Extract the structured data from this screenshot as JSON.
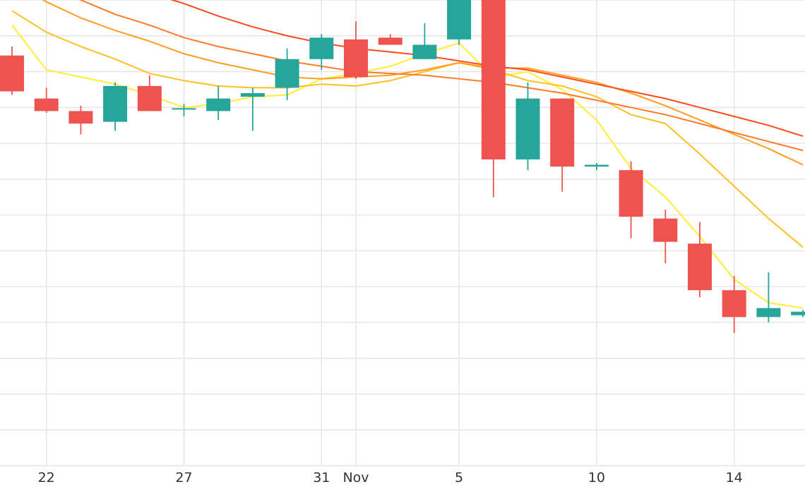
{
  "chart_data": {
    "type": "candlestick",
    "title": "",
    "xlabel": "",
    "ylabel": "",
    "grid": true,
    "legend": "none",
    "colors": {
      "up": "#26A69A",
      "down": "#EF5350",
      "grid": "#E6E6E6"
    },
    "x_ticks": [
      {
        "label": "22",
        "index": 1
      },
      {
        "label": "27",
        "index": 5
      },
      {
        "label": "31",
        "index": 9
      },
      {
        "label": "Nov",
        "index": 10
      },
      {
        "label": "5",
        "index": 13
      },
      {
        "label": "10",
        "index": 17
      },
      {
        "label": "14",
        "index": 21
      }
    ],
    "ylim": [
      100,
      230
    ],
    "candles": [
      {
        "open": 214.5,
        "close": 204.5,
        "high": 217,
        "low": 203.5
      },
      {
        "open": 202.5,
        "close": 199.0,
        "high": 205.5,
        "low": 198.5
      },
      {
        "open": 199.0,
        "close": 195.5,
        "high": 200.5,
        "low": 192.5
      },
      {
        "open": 196.0,
        "close": 206.0,
        "high": 207,
        "low": 193.5
      },
      {
        "open": 206.0,
        "close": 199.0,
        "high": 209,
        "low": 199
      },
      {
        "open": 199.5,
        "close": 199.8,
        "high": 201,
        "low": 197.5
      },
      {
        "open": 199.0,
        "close": 202.5,
        "high": 206,
        "low": 196.5
      },
      {
        "open": 203.0,
        "close": 204.0,
        "high": 205.5,
        "low": 193.5
      },
      {
        "open": 205.5,
        "close": 213.5,
        "high": 216.5,
        "low": 202
      },
      {
        "open": 213.5,
        "close": 219.5,
        "high": 220.5,
        "low": 210.5
      },
      {
        "open": 219.0,
        "close": 208.5,
        "high": 224,
        "low": 208
      },
      {
        "open": 219.5,
        "close": 217.5,
        "high": 220.5,
        "low": 217.5
      },
      {
        "open": 213.5,
        "close": 217.5,
        "high": 223.5,
        "low": 213.5
      },
      {
        "open": 219.0,
        "close": 230.0,
        "high": 231.5,
        "low": 217.5
      },
      {
        "open": 230.0,
        "close": 185.5,
        "high": 231.5,
        "low": 175.0
      },
      {
        "open": 185.5,
        "close": 202.5,
        "high": 207.0,
        "low": 182.5
      },
      {
        "open": 202.5,
        "close": 183.5,
        "high": 202.5,
        "low": 176.5
      },
      {
        "open": 183.5,
        "close": 184.0,
        "high": 184.5,
        "low": 182.5
      },
      {
        "open": 182.5,
        "close": 169.5,
        "high": 185.0,
        "low": 163.5
      },
      {
        "open": 169.0,
        "close": 162.5,
        "high": 171.5,
        "low": 156.5
      },
      {
        "open": 162.0,
        "close": 149.0,
        "high": 168.0,
        "low": 147.0
      },
      {
        "open": 149.0,
        "close": 141.5,
        "high": 153.0,
        "low": 137.0
      },
      {
        "open": 141.5,
        "close": 144.0,
        "high": 154.0,
        "low": 140.0
      },
      {
        "open": 142.0,
        "close": 143.0,
        "high": 143.5,
        "low": 141.5
      }
    ],
    "moving_averages": [
      {
        "color": "#FFEE33",
        "values": [
          223,
          210.5,
          208.5,
          206.5,
          203.5,
          200.0,
          201.0,
          203.0,
          203.5,
          208.0,
          209.5,
          211.5,
          215.0,
          218.0,
          208.5,
          210.0,
          205.0,
          196.5,
          183.0,
          175.0,
          164.0,
          152.0,
          145.5,
          144.0
        ]
      },
      {
        "color": "#FFC020",
        "values": [
          227,
          221.0,
          217.0,
          213.5,
          209.5,
          207.5,
          206.0,
          205.5,
          205.5,
          206.5,
          206.0,
          207.5,
          210.0,
          212.5,
          210.5,
          207.5,
          206.0,
          203.0,
          198.0,
          195.5,
          187.0,
          178.0,
          169.0,
          161.0
        ]
      },
      {
        "color": "#FF9E20",
        "values": [
          235,
          229.5,
          225.0,
          221.5,
          218.5,
          215.0,
          212.5,
          210.5,
          208.5,
          208.0,
          208.5,
          209.0,
          210.5,
          212.5,
          211.0,
          211.0,
          209.0,
          207.0,
          204.0,
          200.5,
          196.5,
          192.5,
          188.5,
          184.0
        ]
      },
      {
        "color": "#FF7A2A",
        "values": [
          241,
          234.5,
          230.0,
          226.0,
          223.0,
          219.5,
          217.0,
          215.0,
          213.0,
          211.5,
          210.0,
          209.5,
          209.0,
          208.0,
          207.0,
          205.5,
          204.0,
          202.0,
          200.0,
          198.0,
          195.5,
          193.0,
          190.5,
          188.0
        ]
      },
      {
        "color": "#FF4A1C",
        "values": [
          245,
          244.5,
          240.0,
          236.0,
          232.0,
          229.0,
          225.5,
          222.5,
          220.0,
          218.0,
          216.5,
          215.5,
          214.5,
          213.0,
          211.5,
          210.5,
          208.5,
          206.5,
          204.5,
          202.5,
          200.0,
          197.5,
          195.0,
          192.0
        ]
      }
    ]
  }
}
